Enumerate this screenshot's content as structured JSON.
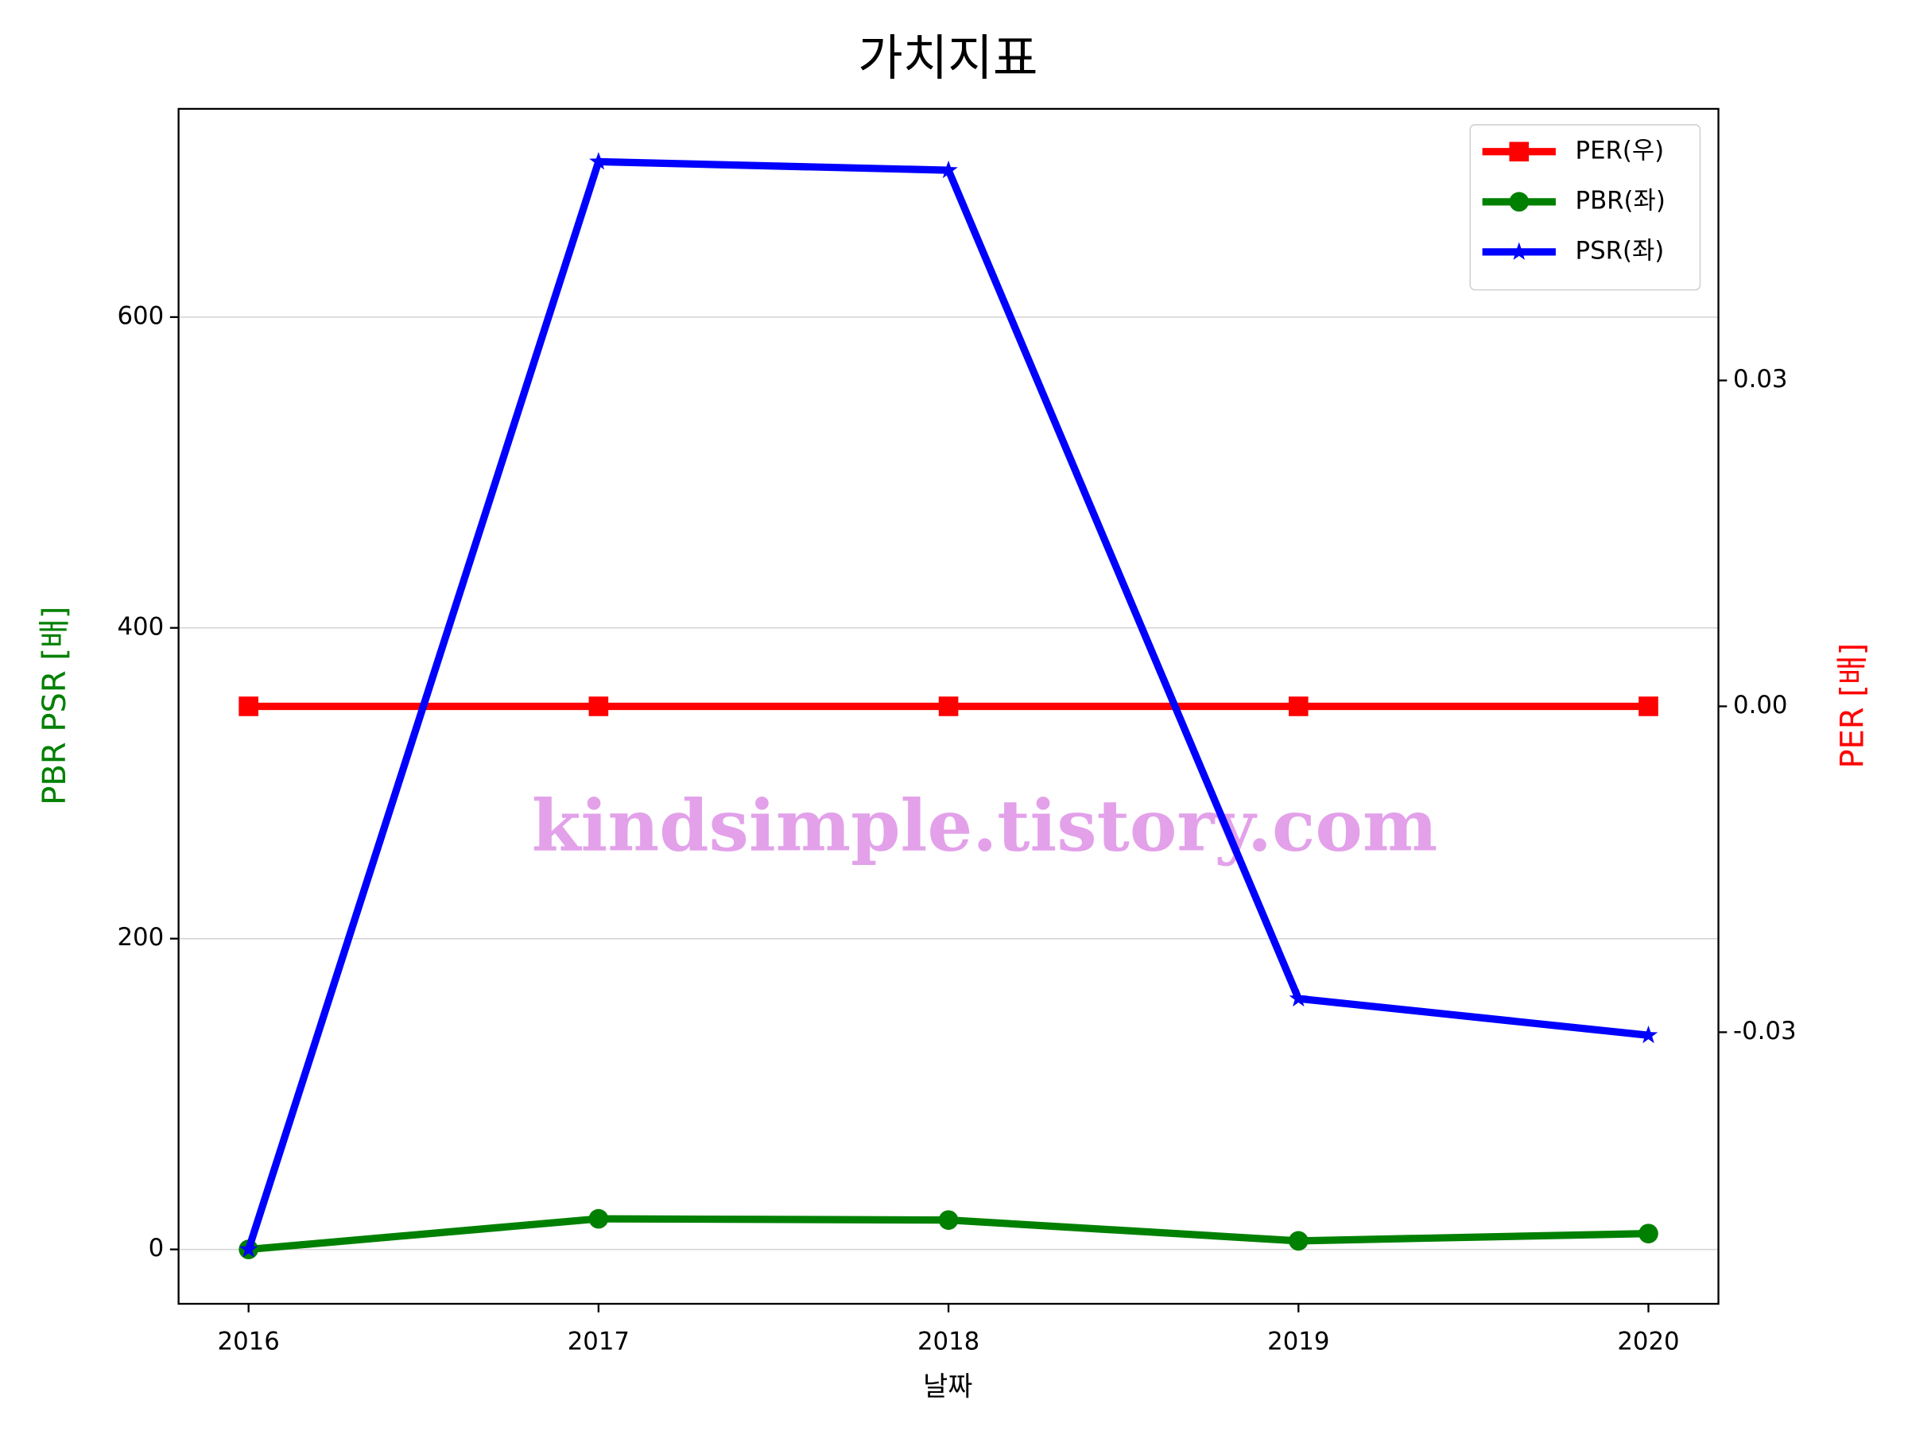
{
  "chart_data": {
    "type": "line",
    "title": "가치지표",
    "x_label": "날짜",
    "y_label": "PBR PSR [배]",
    "y2_label": "PER [배]",
    "y_label_color": "green",
    "y2_label_color": "red",
    "watermark": "kindsimple.tistory.com",
    "categories": [
      "2016",
      "2017",
      "2018",
      "2019",
      "2020"
    ],
    "series": [
      {
        "name": "PER(우)",
        "color": "#ff0000",
        "marker": "square",
        "axis": "y2",
        "values": [
          0,
          0,
          0,
          0,
          0
        ]
      },
      {
        "name": "PBR(좌)",
        "color": "#008000",
        "marker": "circle",
        "values": [
          0,
          19.7,
          18.9,
          5.5,
          10.2
        ]
      },
      {
        "name": "PSR(좌)",
        "color": "#0000ff",
        "marker": "star",
        "values": [
          0,
          700,
          694.5,
          161.4,
          137.8
        ]
      }
    ],
    "ylim": [
      -35,
      734
    ],
    "yticks": [
      0,
      200,
      400,
      600
    ],
    "y2lim": [
      -0.055,
      0.055
    ],
    "y2ticks": [
      -0.03,
      {
        "value": 0,
        "label": "0.00"
      },
      0.03
    ],
    "grid": true,
    "legend": "upper right"
  }
}
